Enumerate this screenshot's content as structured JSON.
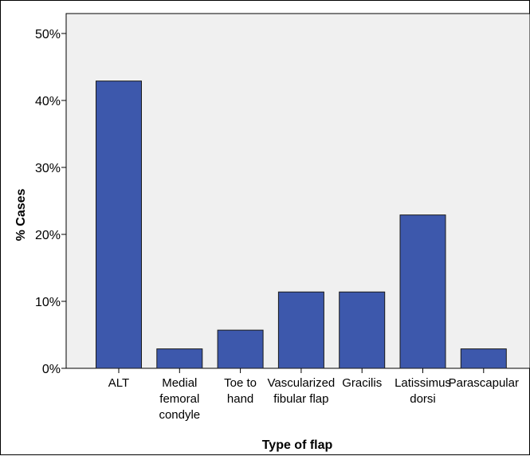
{
  "chart_data": {
    "type": "bar",
    "categories": [
      [
        "ALT"
      ],
      [
        "Medial",
        "femoral",
        "condyle"
      ],
      [
        "Toe to",
        "hand"
      ],
      [
        "Vascularized",
        "fibular flap"
      ],
      [
        "Gracilis"
      ],
      [
        "Latissimus",
        "dorsi"
      ],
      [
        "Parascapular"
      ]
    ],
    "values": [
      42.9,
      2.9,
      5.7,
      11.4,
      11.4,
      22.9,
      2.9
    ],
    "xlabel": "Type of flap",
    "ylabel": "% Cases",
    "ylim": [
      0,
      50
    ],
    "yticks": [
      "0%",
      "10%",
      "20%",
      "30%",
      "40%",
      "50%"
    ],
    "grid": false,
    "colors": {
      "bar_fill": "#3d58ac",
      "bar_stroke": "#1a1a1a",
      "plot_background": "#f0f0f0"
    }
  }
}
